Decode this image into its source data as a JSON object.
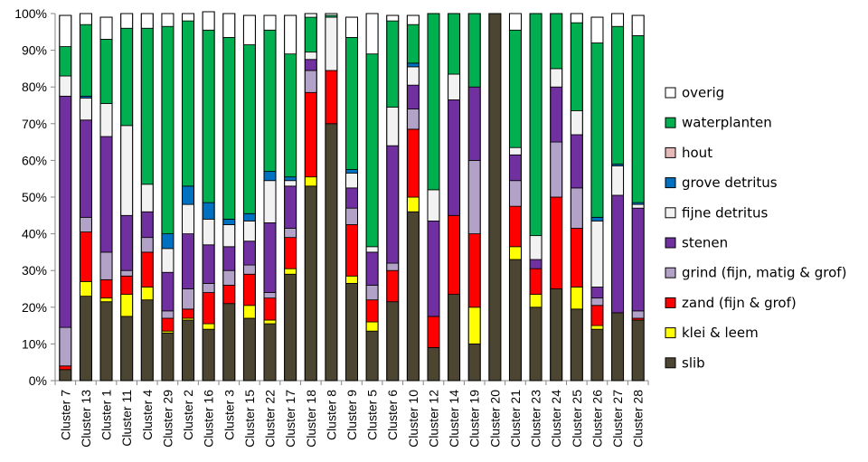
{
  "chart_data": {
    "type": "bar",
    "stacked": true,
    "normalized": true,
    "title": "",
    "xlabel": "",
    "ylabel": "",
    "ylim": [
      0,
      100
    ],
    "y_ticks": [
      "0%",
      "10%",
      "20%",
      "30%",
      "40%",
      "50%",
      "60%",
      "70%",
      "80%",
      "90%",
      "100%"
    ],
    "grid": false,
    "legend_position": "right",
    "categories": [
      "Cluster 7",
      "Cluster 13",
      "Cluster 1",
      "Cluster 11",
      "Cluster 4",
      "Cluster 29",
      "Cluster 2",
      "Cluster 16",
      "Cluster 3",
      "Cluster 15",
      "Cluster 22",
      "Cluster 17",
      "Cluster 18",
      "Cluster 8",
      "Cluster 9",
      "Cluster 5",
      "Cluster 6",
      "Cluster 10",
      "Cluster 12",
      "Cluster 14",
      "Cluster 19",
      "Cluster 20",
      "Cluster 21",
      "Cluster 23",
      "Cluster 24",
      "Cluster 25",
      "Cluster 26",
      "Cluster 27",
      "Cluster 28"
    ],
    "series": [
      {
        "name": "slib",
        "color": "#4b4532",
        "values": [
          3,
          23,
          21.5,
          17.5,
          22,
          13,
          16.5,
          14,
          21,
          17,
          15.5,
          29,
          53,
          70,
          26.5,
          13.5,
          21.5,
          46,
          9,
          23.5,
          10,
          100,
          33,
          20,
          25,
          19.5,
          14,
          18.5,
          16.5
        ]
      },
      {
        "name": "klei & leem",
        "color": "#ffff00",
        "values": [
          0,
          4,
          1,
          6,
          3.5,
          0.5,
          0.5,
          1.5,
          0,
          3.5,
          1,
          1.5,
          2.5,
          0,
          2,
          2.5,
          0,
          4,
          0,
          0,
          10,
          0,
          3.5,
          3.5,
          0,
          6,
          1,
          0,
          0
        ]
      },
      {
        "name": "zand (fijn & grof)",
        "color": "#ff0000",
        "values": [
          1,
          13.5,
          5,
          5,
          9.5,
          3.5,
          2.5,
          8.5,
          5,
          8.5,
          6,
          8.5,
          23,
          14.5,
          14,
          6,
          8.5,
          18.5,
          8.5,
          21.5,
          20,
          0,
          11,
          7,
          25,
          16,
          5.5,
          0,
          0.5
        ]
      },
      {
        "name": "grind (fijn, matig & grof)",
        "color": "#b3a2c7",
        "values": [
          10.5,
          4,
          7.5,
          1.5,
          4,
          2,
          5.5,
          2.5,
          4,
          2.5,
          1.5,
          2.5,
          6,
          0,
          4.5,
          4,
          2,
          5.5,
          0,
          0,
          20,
          0,
          7,
          0,
          15,
          11,
          2,
          0,
          2
        ]
      },
      {
        "name": "stenen",
        "color": "#7030a0",
        "values": [
          63,
          26.5,
          31.5,
          15,
          7,
          10.5,
          15,
          10.5,
          6.5,
          6.5,
          19,
          11.5,
          3,
          0,
          5.5,
          9,
          32,
          6.5,
          26,
          31.5,
          20,
          0,
          7,
          2.5,
          15,
          14.5,
          3,
          32,
          28
        ]
      },
      {
        "name": "fijne detritus",
        "color": "#f2f2f2",
        "values": [
          5.5,
          6,
          9,
          24.5,
          7.5,
          6.5,
          8,
          7,
          6,
          5.5,
          11.5,
          1.5,
          2,
          14.5,
          4,
          1.5,
          10.5,
          5,
          8.5,
          7,
          0,
          0,
          2,
          6.5,
          5,
          6.5,
          18,
          8,
          1
        ]
      },
      {
        "name": "grove detritus",
        "color": "#0070c0",
        "values": [
          0,
          0.5,
          0,
          0,
          0,
          4,
          5,
          4.5,
          1.5,
          2,
          2.5,
          1,
          0,
          0,
          1,
          0,
          0,
          1,
          0,
          0,
          0,
          0,
          0,
          0,
          0,
          0,
          1,
          0.5,
          0.5
        ]
      },
      {
        "name": "hout",
        "color": "#e6b9b8",
        "values": [
          0,
          0,
          0,
          0,
          0,
          0,
          0,
          0,
          0,
          0,
          0,
          0,
          0,
          0,
          0,
          0,
          0,
          0,
          0,
          0,
          0,
          0,
          0,
          0,
          0,
          0,
          0,
          0,
          0
        ]
      },
      {
        "name": "waterplanten",
        "color": "#00b050",
        "values": [
          8,
          19.5,
          17.5,
          26.5,
          42.5,
          56.5,
          45,
          47,
          49.5,
          46,
          38.5,
          33.5,
          9.5,
          0.5,
          36,
          52.5,
          23.5,
          10.5,
          48,
          16.5,
          20,
          0,
          32,
          60.5,
          15,
          24,
          47.5,
          37.5,
          45.5
        ]
      },
      {
        "name": "overig",
        "color": "#ffffff",
        "values": [
          8.5,
          3,
          6,
          4,
          4,
          3.5,
          2,
          5,
          6.5,
          8,
          4,
          10.5,
          1,
          0.5,
          5.5,
          11,
          1.5,
          2.5,
          0,
          0,
          0,
          0,
          4.5,
          0,
          0,
          2.5,
          7,
          3.5,
          5.5
        ]
      }
    ]
  }
}
